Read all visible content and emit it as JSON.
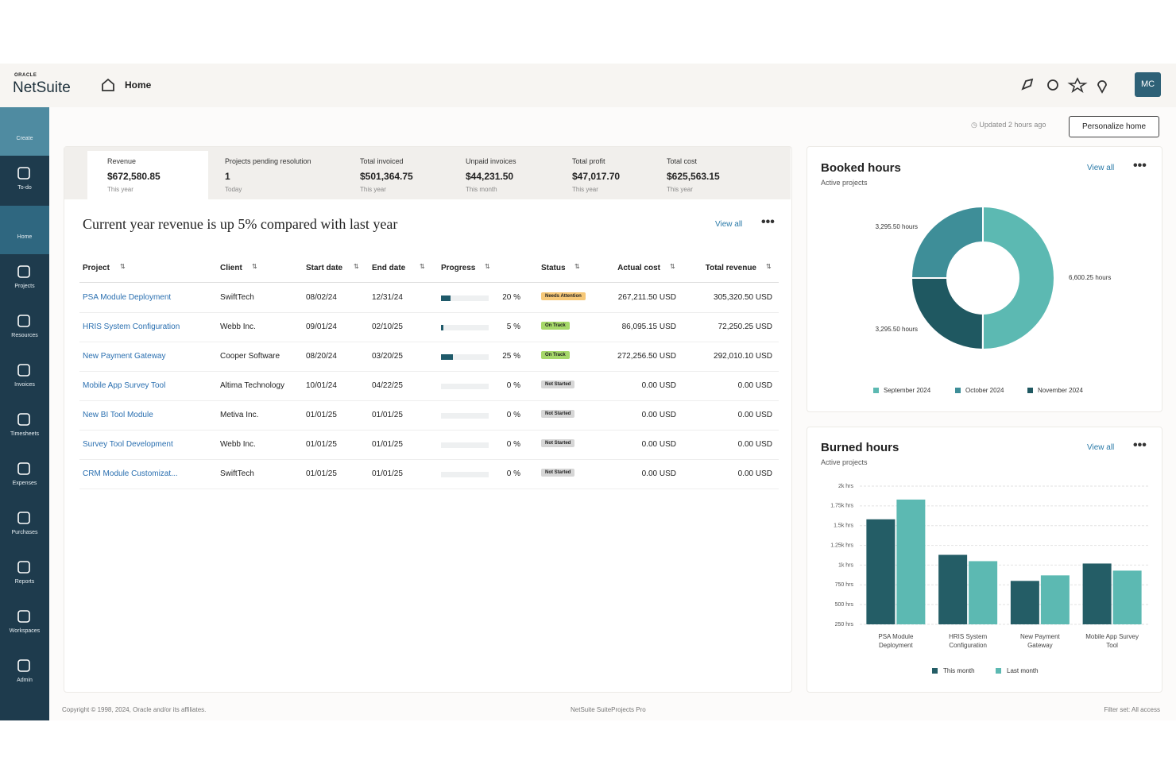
{
  "header": {
    "brand_small": "ORACLE",
    "brand": "NetSuite",
    "page": "Home",
    "avatar": "MC"
  },
  "nav": [
    "Create",
    "To-do",
    "Home",
    "Projects",
    "Resources",
    "Invoices",
    "Timesheets",
    "Expenses",
    "Purchases",
    "Reports",
    "Workspaces",
    "Admin"
  ],
  "toolbar": {
    "updated": "Updated 2 hours ago",
    "button": "Personalize home"
  },
  "kpis": [
    {
      "label": "Revenue",
      "value": "$672,580.85",
      "period": "This year"
    },
    {
      "label": "Projects pending resolution",
      "value": "1",
      "period": "Today"
    },
    {
      "label": "Total invoiced",
      "value": "$501,364.75",
      "period": "This year"
    },
    {
      "label": "Unpaid invoices",
      "value": "$44,231.50",
      "period": "This month"
    },
    {
      "label": "Total profit",
      "value": "$47,017.70",
      "period": "This year"
    },
    {
      "label": "Total cost",
      "value": "$625,563.15",
      "period": "This year"
    }
  ],
  "actions": {
    "view_all": "View all"
  },
  "table": {
    "title": "Current year revenue is up 5% compared with last year",
    "columns": [
      "Project",
      "Client",
      "Start date",
      "End date",
      "Progress",
      "Status",
      "Actual cost",
      "Total revenue"
    ],
    "rows": [
      {
        "project": "PSA Module Deployment",
        "client": "SwiftTech",
        "start": "08/02/24",
        "end": "12/31/24",
        "progress": {
          "value": 20,
          "label": "20 %"
        },
        "status": "Needs Attention",
        "status_color": "#f6c878",
        "actual_cost": "267,211.50 USD",
        "total_revenue": "305,320.50 USD"
      },
      {
        "project": "HRIS System Configuration",
        "client": "Webb Inc.",
        "start": "09/01/24",
        "end": "02/10/25",
        "progress": {
          "value": 5,
          "label": "5 %"
        },
        "status": "On Track",
        "status_color": "#a6d86a",
        "actual_cost": "86,095.15 USD",
        "total_revenue": "72,250.25 USD"
      },
      {
        "project": "New Payment Gateway",
        "client": "Cooper Software",
        "start": "08/20/24",
        "end": "03/20/25",
        "progress": {
          "value": 25,
          "label": "25 %"
        },
        "status": "On Track",
        "status_color": "#a6d86a",
        "actual_cost": "272,256.50 USD",
        "total_revenue": "292,010.10 USD"
      },
      {
        "project": "Mobile App Survey Tool",
        "client": "Altima Technology",
        "start": "10/01/24",
        "end": "04/22/25",
        "progress": {
          "value": 0,
          "label": "0 %"
        },
        "status": "Not Started",
        "status_color": "#d6d6d6",
        "actual_cost": "0.00 USD",
        "total_revenue": "0.00 USD"
      },
      {
        "project": "New BI Tool Module",
        "client": "Metiva Inc.",
        "start": "01/01/25",
        "end": "01/01/25",
        "progress": {
          "value": 0,
          "label": "0 %"
        },
        "status": "Not Started",
        "status_color": "#d6d6d6",
        "actual_cost": "0.00 USD",
        "total_revenue": "0.00 USD"
      },
      {
        "project": "Survey Tool Development",
        "client": "Webb Inc.",
        "start": "01/01/25",
        "end": "01/01/25",
        "progress": {
          "value": 0,
          "label": "0 %"
        },
        "status": "Not Started",
        "status_color": "#d6d6d6",
        "actual_cost": "0.00 USD",
        "total_revenue": "0.00 USD"
      },
      {
        "project": "CRM Module Customizat...",
        "client": "SwiftTech",
        "start": "01/01/25",
        "end": "01/01/25",
        "progress": {
          "value": 0,
          "label": "0 %"
        },
        "status": "Not Started",
        "status_color": "#d6d6d6",
        "actual_cost": "0.00 USD",
        "total_revenue": "0.00 USD"
      }
    ]
  },
  "chart_data": [
    {
      "type": "donut",
      "title": "Booked hours",
      "subtitle": "Active projects",
      "categories": [
        "September 2024",
        "October 2024",
        "November 2024"
      ],
      "values": [
        6600.25,
        3295.5,
        3295.5
      ],
      "value_labels": [
        "6,600.25 hours",
        "3,295.50 hours",
        "3,295.50 hours"
      ],
      "colors": [
        "#5cb9b2",
        "#3e8e98",
        "#1f5861"
      ]
    },
    {
      "type": "bar",
      "title": "Burned hours",
      "subtitle": "Active projects",
      "categories": [
        "PSA Module Deployment",
        "HRIS System Configuration",
        "New Payment Gateway",
        "Mobile App Survey Tool"
      ],
      "series": [
        {
          "name": "This month",
          "color": "#245d66",
          "values": [
            1580,
            1130,
            800,
            1020
          ]
        },
        {
          "name": "Last month",
          "color": "#5cb9b2",
          "values": [
            1830,
            1050,
            870,
            930
          ]
        }
      ],
      "ylim": [
        250,
        2000
      ],
      "yticks": [
        {
          "value": 250,
          "label": "250 hrs"
        },
        {
          "value": 500,
          "label": "500 hrs"
        },
        {
          "value": 750,
          "label": "750 hrs"
        },
        {
          "value": 1000,
          "label": "1k hrs"
        },
        {
          "value": 1250,
          "label": "1.25k hrs"
        },
        {
          "value": 1500,
          "label": "1.5k hrs"
        },
        {
          "value": 1750,
          "label": "1.75k hrs"
        },
        {
          "value": 2000,
          "label": "2k hrs"
        }
      ],
      "grid": true,
      "legend": "bottom"
    }
  ],
  "footer": {
    "left": "Copyright © 1998, 2024, Oracle and/or its affiliates.",
    "center": "NetSuite SuiteProjects Pro",
    "right": "Filter set: All access"
  }
}
